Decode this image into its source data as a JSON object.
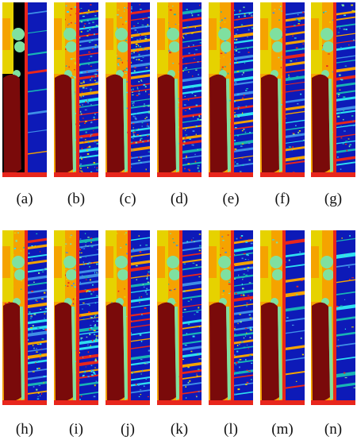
{
  "figure": {
    "panels": [
      {
        "label": "(a)",
        "style": "gt"
      },
      {
        "label": "(b)",
        "style": "noisy_high"
      },
      {
        "label": "(c)",
        "style": "noisy_high"
      },
      {
        "label": "(d)",
        "style": "noisy_mid"
      },
      {
        "label": "(e)",
        "style": "noisy_mid"
      },
      {
        "label": "(f)",
        "style": "noisy_low"
      },
      {
        "label": "(g)",
        "style": "noisy_low"
      },
      {
        "label": "(h)",
        "style": "noisy_mid"
      },
      {
        "label": "(i)",
        "style": "noisy_high"
      },
      {
        "label": "(j)",
        "style": "noisy_low"
      },
      {
        "label": "(k)",
        "style": "noisy_low"
      },
      {
        "label": "(l)",
        "style": "noisy_mid"
      },
      {
        "label": "(m)",
        "style": "smooth"
      },
      {
        "label": "(n)",
        "style": "smooth"
      }
    ],
    "colors": {
      "background_blue": "#0d1ab8",
      "dark_red": "#7a0a0a",
      "red": "#e8261c",
      "orange": "#f5a300",
      "yellow": "#e6d200",
      "mint": "#7fe0a0",
      "cyan": "#2fe0f0",
      "light_blue": "#3f8fe6",
      "teal": "#18b4b4",
      "black": "#000000"
    }
  }
}
